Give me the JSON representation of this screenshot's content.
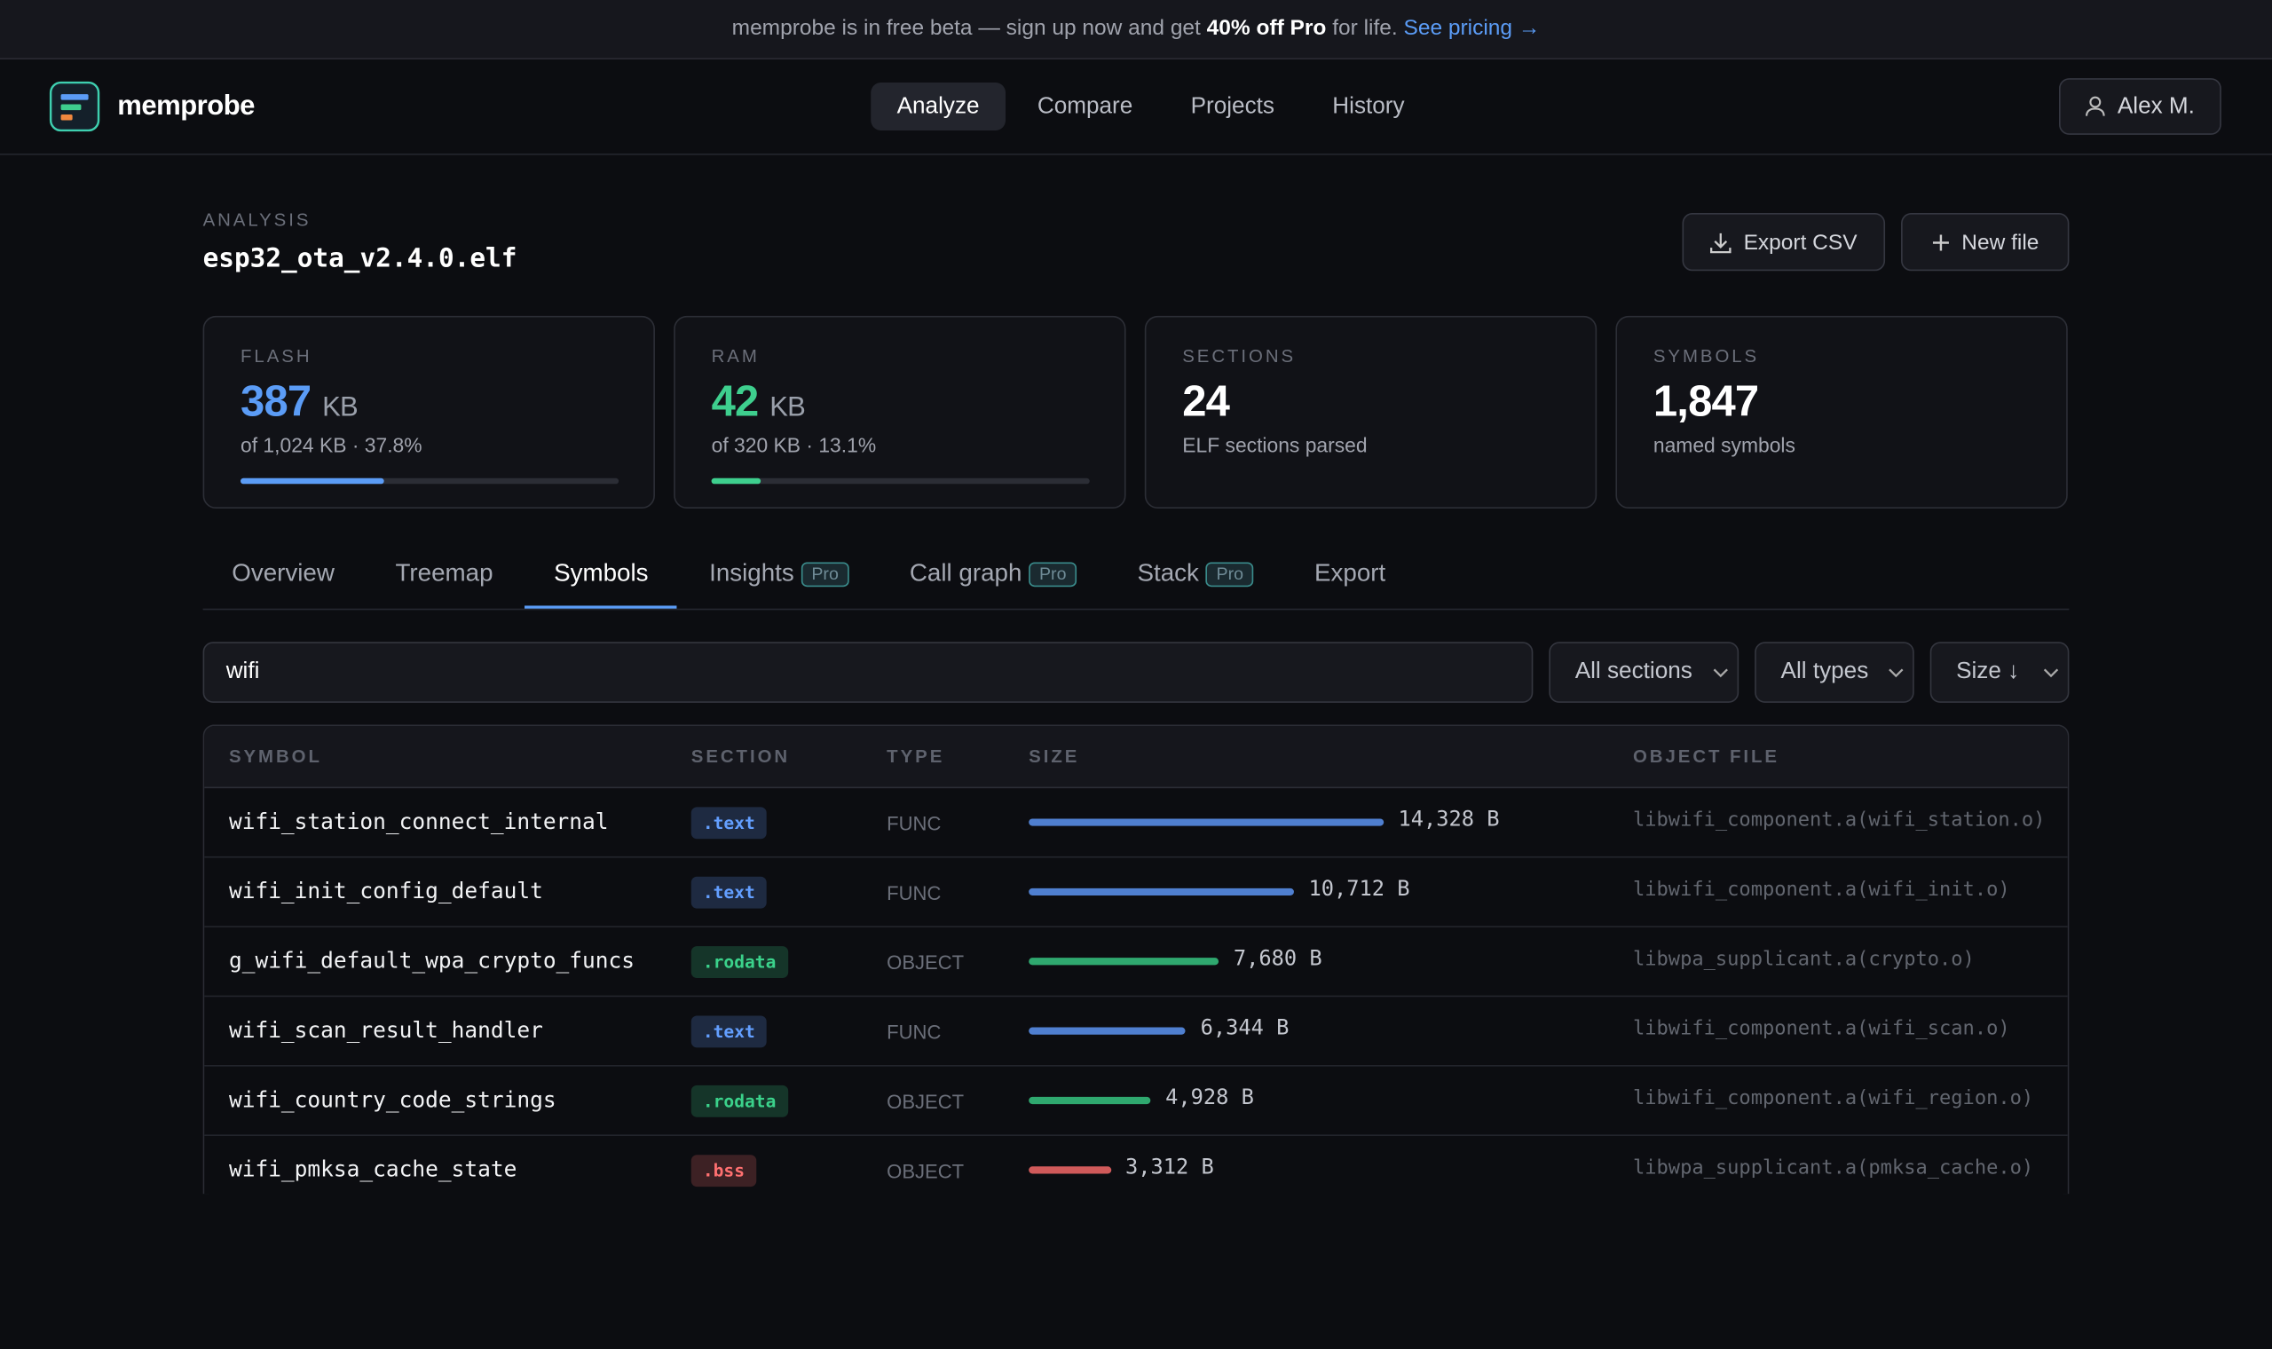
{
  "banner": {
    "text": "memprobe is in free beta — sign up now and get ",
    "highlight": "40% off Pro",
    "text_after": " for life. ",
    "link": "See pricing →"
  },
  "header": {
    "brand": "memprobe",
    "nav": [
      {
        "label": "Analyze",
        "active": true
      },
      {
        "label": "Compare"
      },
      {
        "label": "Projects"
      },
      {
        "label": "History"
      }
    ],
    "user": "Alex M."
  },
  "analysis": {
    "label": "ANALYSIS",
    "file": "esp32_ota_v2.4.0.elf",
    "actions": [
      "Export CSV",
      "New file"
    ]
  },
  "stats": [
    {
      "label": "FLASH",
      "value": "387",
      "unit": "KB",
      "detail": "of 1,024 KB · 37.8%",
      "usage_percent": 37.8,
      "color": "#5b9cf6"
    },
    {
      "label": "RAM",
      "value": "42",
      "unit": "KB",
      "detail": "of 320 KB · 13.1%",
      "usage_percent": 13.1,
      "color": "#3ecf8e"
    },
    {
      "label": "SECTIONS",
      "value": "24",
      "detail": "ELF sections parsed"
    },
    {
      "label": "SYMBOLS",
      "value": "1,847",
      "detail": "named symbols"
    }
  ],
  "tabs": [
    {
      "label": "Overview"
    },
    {
      "label": "Treemap"
    },
    {
      "label": "Symbols",
      "active": true
    },
    {
      "label": "Insights",
      "badge": "Pro"
    },
    {
      "label": "Call graph",
      "badge": "Pro"
    },
    {
      "label": "Stack",
      "badge": "Pro"
    },
    {
      "label": "Export"
    }
  ],
  "filters": {
    "search": "wifi",
    "dropdowns": [
      "All sections",
      "All types",
      "Size ↓"
    ]
  },
  "table": {
    "columns": [
      "SYMBOL",
      "SECTION",
      "TYPE",
      "SIZE",
      "OBJECT FILE"
    ],
    "rows": [
      {
        "symbol": "wifi_station_connect_internal",
        "section": ".text",
        "type": "FUNC",
        "size": 14328,
        "size_label": "14,328 B",
        "object": "libwifi_component.a(wifi_station.o)",
        "color": "#4f7fd0"
      },
      {
        "symbol": "wifi_init_config_default",
        "section": ".text",
        "type": "FUNC",
        "size": 10712,
        "size_label": "10,712 B",
        "object": "libwifi_component.a(wifi_init.o)",
        "color": "#4f7fd0"
      },
      {
        "symbol": "g_wifi_default_wpa_crypto_funcs",
        "section": ".rodata",
        "type": "OBJECT",
        "size": 7680,
        "size_label": "7,680 B",
        "object": "libwpa_supplicant.a(crypto.o)",
        "color": "#2fa86f"
      },
      {
        "symbol": "wifi_scan_result_handler",
        "section": ".text",
        "type": "FUNC",
        "size": 6344,
        "size_label": "6,344 B",
        "object": "libwifi_component.a(wifi_scan.o)",
        "color": "#4f7fd0"
      },
      {
        "symbol": "wifi_country_code_strings",
        "section": ".rodata",
        "type": "OBJECT",
        "size": 4928,
        "size_label": "4,928 B",
        "object": "libwifi_component.a(wifi_region.o)",
        "color": "#2fa86f"
      },
      {
        "symbol": "wifi_pmksa_cache_state",
        "section": ".bss",
        "type": "OBJECT",
        "size": 3312,
        "size_label": "3,312 B",
        "object": "libwpa_supplicant.a(pmksa_cache.o)",
        "color": "#d05a5a"
      }
    ]
  }
}
